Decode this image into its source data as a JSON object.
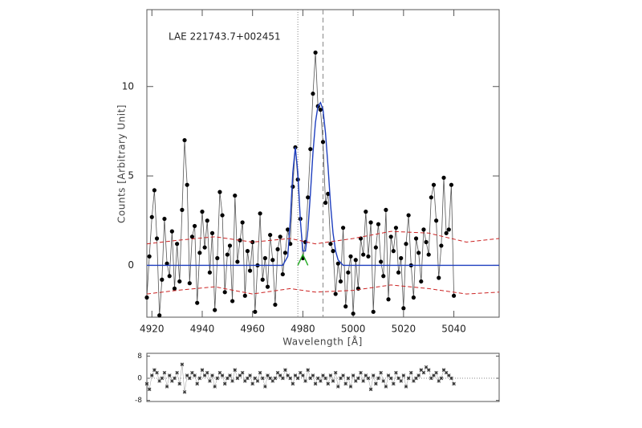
{
  "chart_data": [
    {
      "type": "line",
      "label": "LAE 221743.7+002451",
      "xlabel": "Wavelength [Å]",
      "ylabel": "Counts [Arbitrary Unit]",
      "xlim": [
        4918,
        5058
      ],
      "ylim": [
        -2.9,
        14.3
      ],
      "xticks": [
        4920,
        4940,
        4960,
        4980,
        5000,
        5020,
        5040
      ],
      "yticks": [
        0,
        5,
        10
      ],
      "vlines": [
        {
          "x": 4978,
          "style": "dotted"
        },
        {
          "x": 4988,
          "style": "dashed"
        }
      ],
      "series": [
        {
          "color": "#000000",
          "style": "points",
          "x": [
            4918,
            4919,
            4920,
            4921,
            4922,
            4923,
            4924,
            4925,
            4926,
            4927,
            4928,
            4929,
            4930,
            4931,
            4932,
            4933,
            4934,
            4935,
            4936,
            4937,
            4938,
            4939,
            4940,
            4941,
            4942,
            4943,
            4944,
            4945,
            4946,
            4947,
            4948,
            4949,
            4950,
            4951,
            4952,
            4953,
            4954,
            4955,
            4956,
            4957,
            4958,
            4959,
            4960,
            4961,
            4962,
            4963,
            4964,
            4965,
            4966,
            4967,
            4968,
            4969,
            4970,
            4971,
            4972,
            4973,
            4974,
            4975,
            4976,
            4977,
            4978,
            4979,
            4980,
            4981,
            4982,
            4983,
            4984,
            4985,
            4986,
            4987,
            4988,
            4989,
            4990,
            4991,
            4992,
            4993,
            4994,
            4995,
            4996,
            4997,
            4998,
            4999,
            5000,
            5001,
            5002,
            5003,
            5004,
            5005,
            5006,
            5007,
            5008,
            5009,
            5010,
            5011,
            5012,
            5013,
            5014,
            5015,
            5016,
            5017,
            5018,
            5019,
            5020,
            5021,
            5022,
            5023,
            5024,
            5025,
            5026,
            5027,
            5028,
            5029,
            5030,
            5031,
            5032,
            5033,
            5034,
            5035,
            5036,
            5037,
            5038,
            5039,
            5040
          ],
          "values": [
            -1.8,
            0.5,
            2.7,
            4.2,
            1.5,
            -2.8,
            -0.8,
            2.6,
            0.1,
            -0.6,
            1.9,
            -1.3,
            1.2,
            -0.9,
            3.1,
            7,
            4.5,
            -1,
            1.6,
            2.2,
            -2.1,
            0.7,
            3,
            1,
            2.5,
            -0.4,
            1.8,
            -2.5,
            0.4,
            4.1,
            2.8,
            -1.5,
            0.6,
            1.1,
            -2,
            3.9,
            0.2,
            1.4,
            2.4,
            -1.7,
            0.8,
            -0.3,
            1.3,
            -2.6,
            0,
            2.9,
            -0.8,
            0.4,
            -1.2,
            1.7,
            0.3,
            -2.2,
            0.9,
            1.6,
            -0.5,
            0.7,
            2,
            1.2,
            4.4,
            6.6,
            4.8,
            2.6,
            0.4,
            1.3,
            3.8,
            6.5,
            9.6,
            11.9,
            8.9,
            8.7,
            6.9,
            3.5,
            4,
            1.2,
            0.8,
            -1.6,
            0.1,
            -0.9,
            2.1,
            -2.3,
            -0.4,
            0.5,
            -2.7,
            0.3,
            -1.3,
            1.5,
            0.6,
            3,
            0.5,
            2.4,
            -2.6,
            1,
            2.3,
            0.2,
            -0.6,
            3.1,
            -1.9,
            1.6,
            0.8,
            2.1,
            -0.4,
            0.4,
            -2.4,
            1.2,
            2.8,
            0,
            -1.8,
            1.5,
            0.7,
            -0.9,
            2,
            1.3,
            0.6,
            3.8,
            4.5,
            2.5,
            -0.7,
            1.1,
            4.9,
            1.8,
            2,
            4.5,
            -1.7
          ]
        },
        {
          "color": "#1f3fbf",
          "style": "line",
          "x": [
            4918,
            4972,
            4974,
            4975,
            4976,
            4977,
            4978,
            4979,
            4980,
            4981,
            4982,
            4983,
            4984,
            4985,
            4986,
            4987,
            4988,
            4989,
            4990,
            4991,
            4992,
            4993,
            4994,
            4996,
            5058
          ],
          "values": [
            0,
            0,
            0.5,
            2.5,
            5.2,
            6.6,
            5.2,
            2.5,
            0.8,
            0.8,
            2,
            4,
            6.3,
            8,
            8.9,
            9.1,
            8.7,
            7.4,
            5.5,
            3.4,
            1.8,
            0.8,
            0.3,
            0,
            0
          ]
        },
        {
          "color": "#22aa22",
          "style": "line",
          "x": [
            4978,
            4979,
            4980,
            4981,
            4982
          ],
          "values": [
            0,
            0.3,
            0.6,
            0.3,
            0
          ]
        },
        {
          "color": "#cc2222",
          "style": "dashed",
          "x": [
            4918,
            4930,
            4945,
            4960,
            4975,
            4985,
            5000,
            5015,
            5030,
            5045,
            5058
          ],
          "values": [
            1.2,
            1.4,
            1.6,
            1.3,
            1.5,
            1.2,
            1.5,
            1.9,
            1.8,
            1.3,
            1.5
          ]
        },
        {
          "color": "#cc2222",
          "style": "dashed",
          "x": [
            4918,
            4930,
            4945,
            4960,
            4975,
            4985,
            5000,
            5015,
            5030,
            5045,
            5058
          ],
          "values": [
            -1.6,
            -1.4,
            -1.2,
            -1.6,
            -1.3,
            -1.5,
            -1.4,
            -1.1,
            -1.3,
            -1.6,
            -1.5
          ]
        }
      ]
    },
    {
      "type": "scatter",
      "xlim": [
        4918,
        5058
      ],
      "ylim": [
        -8.4,
        9
      ],
      "yticks": [
        8,
        0,
        -8
      ],
      "reference_line": 0,
      "series": [
        {
          "color": "#333333",
          "style": "stars",
          "x": [
            4918,
            4919,
            4920,
            4921,
            4922,
            4923,
            4924,
            4925,
            4926,
            4927,
            4928,
            4929,
            4930,
            4931,
            4932,
            4933,
            4934,
            4935,
            4936,
            4937,
            4938,
            4939,
            4940,
            4941,
            4942,
            4943,
            4944,
            4945,
            4946,
            4947,
            4948,
            4949,
            4950,
            4951,
            4952,
            4953,
            4954,
            4955,
            4956,
            4957,
            4958,
            4959,
            4960,
            4961,
            4962,
            4963,
            4964,
            4965,
            4966,
            4967,
            4968,
            4969,
            4970,
            4971,
            4972,
            4973,
            4974,
            4975,
            4976,
            4977,
            4978,
            4979,
            4980,
            4981,
            4982,
            4983,
            4984,
            4985,
            4986,
            4987,
            4988,
            4989,
            4990,
            4991,
            4992,
            4993,
            4994,
            4995,
            4996,
            4997,
            4998,
            4999,
            5000,
            5001,
            5002,
            5003,
            5004,
            5005,
            5006,
            5007,
            5008,
            5009,
            5010,
            5011,
            5012,
            5013,
            5014,
            5015,
            5016,
            5017,
            5018,
            5019,
            5020,
            5021,
            5022,
            5023,
            5024,
            5025,
            5026,
            5027,
            5028,
            5029,
            5030,
            5031,
            5032,
            5033,
            5034,
            5035,
            5036,
            5037,
            5038,
            5039,
            5040
          ],
          "values": [
            -2,
            -4,
            1,
            3,
            2,
            -1,
            0,
            2,
            -3,
            1,
            -1,
            0,
            2,
            -2,
            5,
            -5,
            1,
            0,
            2,
            1,
            -2,
            0,
            3,
            1,
            2,
            -1,
            1,
            -3,
            0,
            2,
            1,
            -2,
            0,
            1,
            -1,
            3,
            0,
            1,
            2,
            -1,
            0,
            1,
            -2,
            0,
            -1,
            2,
            0,
            -3,
            1,
            0,
            -1,
            0,
            2,
            1,
            0,
            3,
            1,
            0,
            -2,
            1,
            0,
            2,
            1,
            -1,
            3,
            0,
            1,
            -2,
            0,
            -1,
            1,
            0,
            -2,
            1,
            -1,
            2,
            -3,
            0,
            1,
            -2,
            0,
            -3,
            1,
            -1,
            0,
            2,
            -1,
            1,
            0,
            -4,
            1,
            -2,
            0,
            2,
            -1,
            -3,
            1,
            0,
            -2,
            2,
            0,
            -1,
            1,
            -3,
            0,
            2,
            -1,
            0,
            1,
            3,
            2,
            4,
            3,
            0,
            1,
            2,
            -1,
            0,
            3,
            2,
            1,
            0,
            -2
          ]
        }
      ]
    }
  ]
}
